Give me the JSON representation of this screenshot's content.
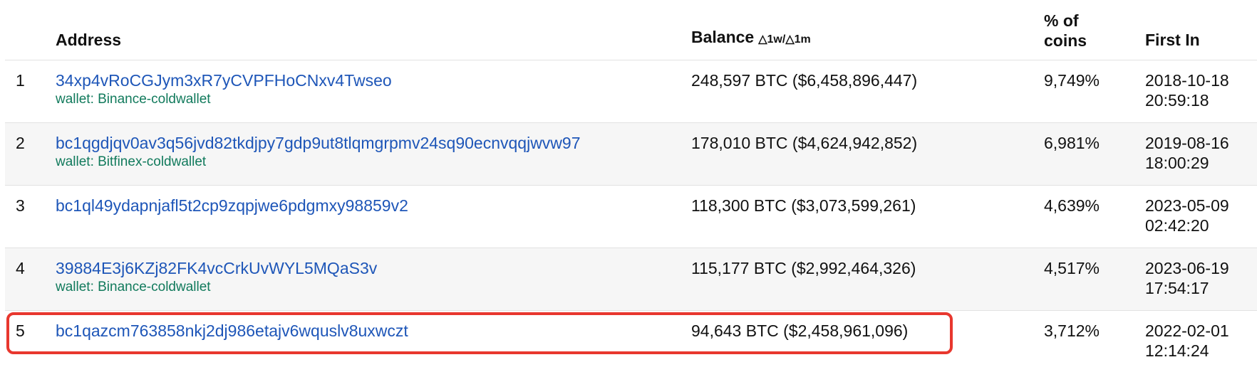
{
  "header": {
    "rank": "",
    "address": "Address",
    "balance": "Balance",
    "balance_delta": "△1w/△1m",
    "pct_coins": "% of coins",
    "first_in": "First In"
  },
  "rows": [
    {
      "rank": "1",
      "address": "34xp4vRoCGJym3xR7yCVPFHoCNxv4Twseo",
      "wallet": "wallet: Binance-coldwallet",
      "balance": "248,597 BTC ($6,458,896,447)",
      "pct": "9,749%",
      "first_in_date": "2018-10-18",
      "first_in_time": "20:59:18"
    },
    {
      "rank": "2",
      "address": "bc1qgdjqv0av3q56jvd82tkdjpy7gdp9ut8tlqmgrpmv24sq90ecnvqqjwvw97",
      "wallet": "wallet: Bitfinex-coldwallet",
      "balance": "178,010 BTC ($4,624,942,852)",
      "pct": "6,981%",
      "first_in_date": "2019-08-16",
      "first_in_time": "18:00:29"
    },
    {
      "rank": "3",
      "address": "bc1ql49ydapnjafl5t2cp9zqpjwe6pdgmxy98859v2",
      "wallet": "",
      "balance": "118,300 BTC ($3,073,599,261)",
      "pct": "4,639%",
      "first_in_date": "2023-05-09",
      "first_in_time": "02:42:20"
    },
    {
      "rank": "4",
      "address": "39884E3j6KZj82FK4vcCrkUvWYL5MQaS3v",
      "wallet": "wallet: Binance-coldwallet",
      "balance": "115,177 BTC ($2,992,464,326)",
      "pct": "4,517%",
      "first_in_date": "2023-06-19",
      "first_in_time": "17:54:17"
    },
    {
      "rank": "5",
      "address": "bc1qazcm763858nkj2dj986etajv6wquslv8uxwczt",
      "wallet": "",
      "balance": "94,643 BTC ($2,458,961,096)",
      "pct": "3,712%",
      "first_in_date": "2022-02-01",
      "first_in_time": "12:14:24"
    }
  ],
  "colors": {
    "link": "#1e56b8",
    "wallet": "#117a5c",
    "highlight_border": "#e8372e",
    "alt_row_bg": "#f6f6f6"
  }
}
